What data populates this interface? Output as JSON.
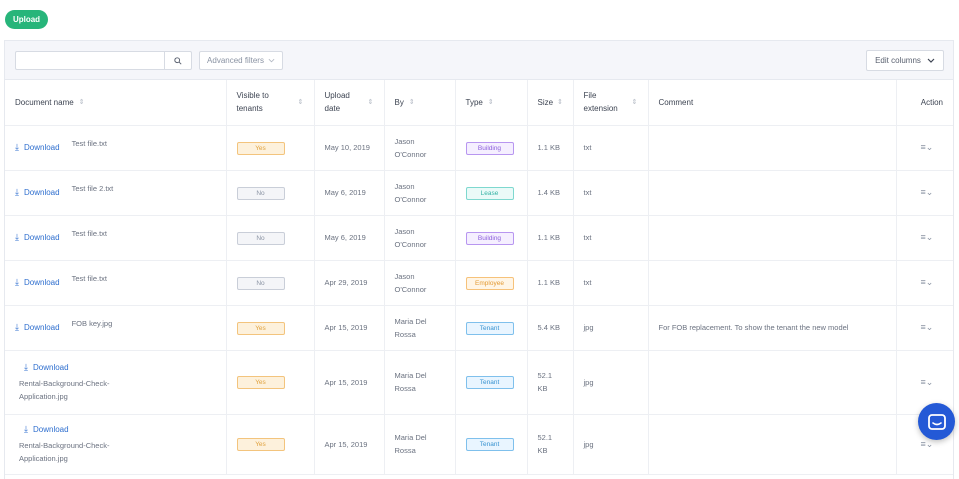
{
  "upload_label": "Upload",
  "toolbar": {
    "search_placeholder": "",
    "advanced_filters_label": "Advanced filters",
    "edit_columns_label": "Edit columns"
  },
  "columns": {
    "document_name": "Document name",
    "visible_l1": "Visible to",
    "visible_l2": "tenants",
    "upload_l1": "Upload",
    "upload_l2": "date",
    "by": "By",
    "type": "Type",
    "size": "Size",
    "ext_l1": "File",
    "ext_l2": "extension",
    "comment": "Comment",
    "action": "Action"
  },
  "download_label": "Download",
  "rows": [
    {
      "file": "Test file.txt",
      "visible": "Yes",
      "date": "May 10, 2019",
      "by_l1": "Jason",
      "by_l2": "O'Connor",
      "type": "Building",
      "size": "1.1 KB",
      "ext": "txt",
      "comment": ""
    },
    {
      "file": "Test file 2.txt",
      "visible": "No",
      "date": "May 6, 2019",
      "by_l1": "Jason",
      "by_l2": "O'Connor",
      "type": "Lease",
      "size": "1.4 KB",
      "ext": "txt",
      "comment": ""
    },
    {
      "file": "Test file.txt",
      "visible": "No",
      "date": "May 6, 2019",
      "by_l1": "Jason",
      "by_l2": "O'Connor",
      "type": "Building",
      "size": "1.1 KB",
      "ext": "txt",
      "comment": ""
    },
    {
      "file": "Test file.txt",
      "visible": "No",
      "date": "Apr 29, 2019",
      "by_l1": "Jason",
      "by_l2": "O'Connor",
      "type": "Employee",
      "size": "1.1 KB",
      "ext": "txt",
      "comment": ""
    },
    {
      "file": "FOB key.jpg",
      "visible": "Yes",
      "date": "Apr 15, 2019",
      "by_l1": "Maria Del",
      "by_l2": "Rossa",
      "type": "Tenant",
      "size": "5.4 KB",
      "ext": "jpg",
      "comment": "For FOB replacement. To show the tenant the new model"
    },
    {
      "file_l1": "Rental-Background-Check-",
      "file_l2": "Application.jpg",
      "visible": "Yes",
      "date": "Apr 15, 2019",
      "by_l1": "Maria Del",
      "by_l2": "Rossa",
      "type": "Tenant",
      "size": "52.1 KB",
      "ext": "jpg",
      "comment": ""
    },
    {
      "file_l1": "Rental-Background-Check-",
      "file_l2": "Application.jpg",
      "visible": "Yes",
      "date": "Apr 15, 2019",
      "by_l1": "Maria Del",
      "by_l2": "Rossa",
      "type": "Tenant",
      "size": "52.1 KB",
      "ext": "jpg",
      "comment": ""
    }
  ],
  "colors": {
    "accent_green": "#27b57a",
    "link_blue": "#2f6fcf",
    "chat_blue": "#2459d6"
  },
  "icons": [
    "search-icon",
    "chevron-down-icon",
    "download-icon",
    "sort-icon",
    "menu-icon",
    "chat-icon"
  ]
}
